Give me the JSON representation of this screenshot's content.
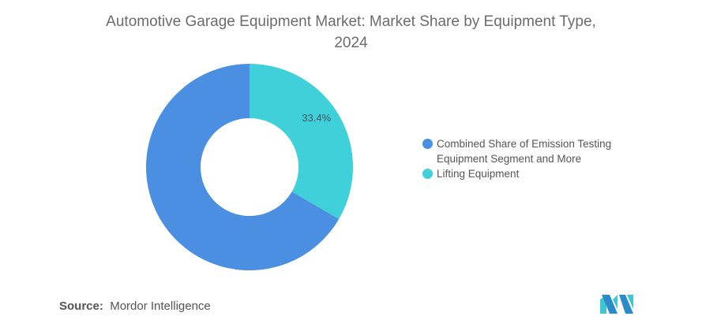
{
  "chart_data": {
    "type": "pie",
    "title": "Automotive Garage Equipment Market: Market Share by Equipment Type, 2024",
    "title_lines": [
      "Automotive Garage Equipment Market: Market Share by Equipment Type,",
      "2024"
    ],
    "donut": true,
    "slices": [
      {
        "label": "Lifting Equipment",
        "value": 33.4,
        "color": "#40d0da",
        "data_label": "33.4%"
      },
      {
        "label": "Combined Share of Emission Testing Equipment Segment and More",
        "value": 66.6,
        "color": "#4a8fe2",
        "data_label": ""
      }
    ],
    "legend_lines": [
      [
        "Combined Share of Emission Testing",
        "Equipment Segment and More"
      ],
      [
        "Lifting Equipment"
      ]
    ],
    "legend_placement": "right"
  },
  "source": {
    "label": "Source:",
    "text": "Mordor Intelligence"
  },
  "logo": "Mordor Intelligence logo"
}
